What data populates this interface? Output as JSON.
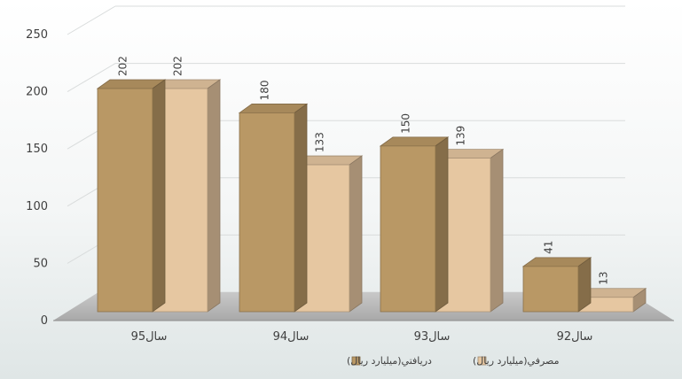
{
  "chart_data": {
    "type": "bar",
    "title": "",
    "xlabel": "",
    "ylabel": "",
    "ylim": [
      0,
      250
    ],
    "yticks": [
      "0",
      "50",
      "100",
      "150",
      "200",
      "250"
    ],
    "categories": [
      "سال95",
      "سال94",
      "سال93",
      "سال92"
    ],
    "series": [
      {
        "name": "دريافتي(ميليارد ريال)",
        "values": [
          202,
          180,
          150,
          41
        ],
        "color": "#b99865"
      },
      {
        "name": "مصرفي(ميليارد ريال)",
        "values": [
          202,
          133,
          139,
          13
        ],
        "color": "#e6c7a1"
      }
    ],
    "data_labels": [
      [
        "202",
        "180",
        "150",
        "41"
      ],
      [
        "202",
        "133",
        "139",
        "13"
      ]
    ],
    "legend_position": "bottom",
    "style": "3d-clustered-column",
    "grid": true
  }
}
